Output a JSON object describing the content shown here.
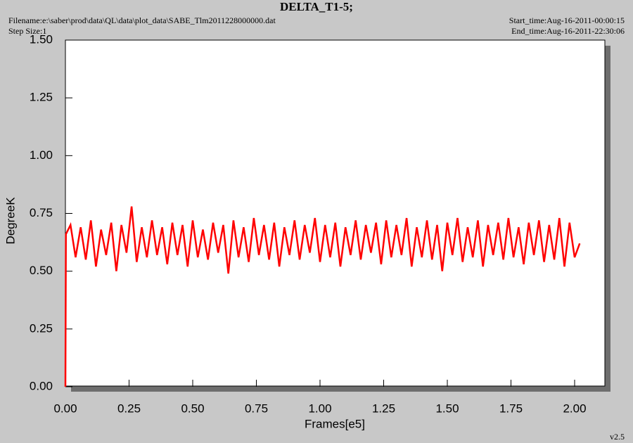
{
  "chart_data": {
    "type": "line",
    "title": "DELTA_T1-5;",
    "filename": "Filename:e:\\saber\\prod\\data\\QL\\data\\plot_data\\SABE_Tlm2011228000000.dat",
    "step_size": "Step Size:1",
    "start_time": "Start_time:Aug-16-2011-00:00:15",
    "end_time": "End_time:Aug-16-2011-22:30:06",
    "version": "v2.5",
    "xlabel": "Frames[e5]",
    "ylabel": "DegreeK",
    "xlim": [
      0,
      2.1
    ],
    "ylim": [
      0,
      1.5
    ],
    "xticks": [
      {
        "value": 0,
        "label": "0.00"
      },
      {
        "value": 0.25,
        "label": "0.25"
      },
      {
        "value": 0.5,
        "label": "0.50"
      },
      {
        "value": 0.75,
        "label": "0.75"
      },
      {
        "value": 1,
        "label": "1.00"
      },
      {
        "value": 1.25,
        "label": "1.25"
      },
      {
        "value": 1.5,
        "label": "1.50"
      },
      {
        "value": 1.75,
        "label": "1.75"
      },
      {
        "value": 2,
        "label": "2.00"
      }
    ],
    "yticks": [
      {
        "value": 0,
        "label": "0.00"
      },
      {
        "value": 0.25,
        "label": "0.25"
      },
      {
        "value": 0.5,
        "label": "0.50"
      },
      {
        "value": 0.75,
        "label": "0.75"
      },
      {
        "value": 1,
        "label": "1.00"
      },
      {
        "value": 1.25,
        "label": "1.25"
      },
      {
        "value": 1.5,
        "label": "1.50"
      }
    ],
    "x": [
      0,
      0.002,
      0.02,
      0.04,
      0.06,
      0.08,
      0.1,
      0.12,
      0.14,
      0.16,
      0.18,
      0.2,
      0.22,
      0.24,
      0.26,
      0.28,
      0.3,
      0.32,
      0.34,
      0.36,
      0.38,
      0.4,
      0.42,
      0.44,
      0.46,
      0.48,
      0.5,
      0.52,
      0.54,
      0.56,
      0.58,
      0.6,
      0.62,
      0.64,
      0.66,
      0.68,
      0.7,
      0.72,
      0.74,
      0.76,
      0.78,
      0.8,
      0.82,
      0.84,
      0.86,
      0.88,
      0.9,
      0.92,
      0.94,
      0.96,
      0.98,
      1.0,
      1.02,
      1.04,
      1.06,
      1.08,
      1.1,
      1.12,
      1.14,
      1.16,
      1.18,
      1.2,
      1.22,
      1.24,
      1.26,
      1.28,
      1.3,
      1.32,
      1.34,
      1.36,
      1.38,
      1.4,
      1.42,
      1.44,
      1.46,
      1.48,
      1.5,
      1.52,
      1.54,
      1.56,
      1.58,
      1.6,
      1.62,
      1.64,
      1.66,
      1.68,
      1.7,
      1.72,
      1.74,
      1.76,
      1.78,
      1.8,
      1.82,
      1.84,
      1.86,
      1.88,
      1.9,
      1.92,
      1.94,
      1.96,
      1.98,
      2.0,
      2.02
    ],
    "series": [
      {
        "color": "#ff0000",
        "values": [
          0,
          0.66,
          0.7,
          0.56,
          0.69,
          0.55,
          0.72,
          0.52,
          0.68,
          0.57,
          0.71,
          0.5,
          0.7,
          0.58,
          0.78,
          0.54,
          0.69,
          0.56,
          0.72,
          0.57,
          0.69,
          0.53,
          0.71,
          0.57,
          0.7,
          0.52,
          0.72,
          0.56,
          0.68,
          0.55,
          0.71,
          0.58,
          0.7,
          0.49,
          0.72,
          0.56,
          0.69,
          0.54,
          0.73,
          0.57,
          0.7,
          0.55,
          0.71,
          0.52,
          0.69,
          0.57,
          0.72,
          0.55,
          0.7,
          0.58,
          0.73,
          0.54,
          0.7,
          0.56,
          0.71,
          0.52,
          0.69,
          0.57,
          0.72,
          0.55,
          0.7,
          0.58,
          0.71,
          0.53,
          0.72,
          0.56,
          0.7,
          0.57,
          0.73,
          0.52,
          0.69,
          0.56,
          0.72,
          0.55,
          0.7,
          0.5,
          0.71,
          0.57,
          0.73,
          0.54,
          0.69,
          0.56,
          0.72,
          0.52,
          0.7,
          0.57,
          0.71,
          0.55,
          0.73,
          0.56,
          0.69,
          0.53,
          0.71,
          0.57,
          0.72,
          0.54,
          0.7,
          0.55,
          0.73,
          0.52,
          0.71,
          0.56,
          0.62
        ]
      }
    ]
  }
}
